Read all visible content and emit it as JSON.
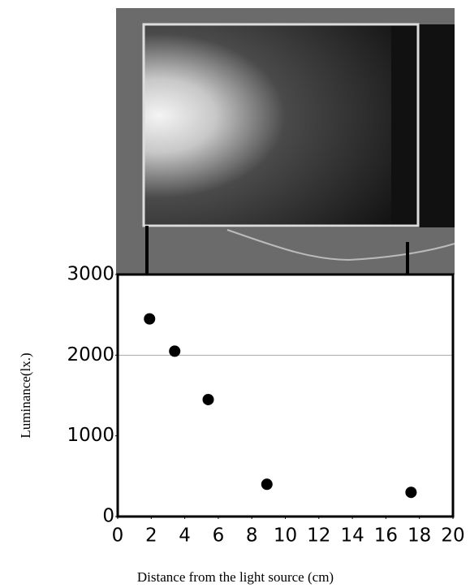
{
  "chart_data": {
    "type": "scatter",
    "x_label": "Distance from the light source (cm)",
    "y_label": "Luminance(lx.)",
    "x": [
      1.9,
      3.4,
      5.4,
      8.9,
      17.5
    ],
    "values": [
      2450,
      2050,
      1450,
      400,
      300
    ],
    "color": "#000000",
    "xlim": [
      0,
      20
    ],
    "xticks": [
      0,
      2,
      4,
      6,
      8,
      10,
      12,
      14,
      16,
      18,
      20
    ],
    "ylim": [
      0,
      3000
    ],
    "yticks": [
      0,
      1000,
      2000,
      3000
    ],
    "hgrid": [
      2000
    ]
  }
}
